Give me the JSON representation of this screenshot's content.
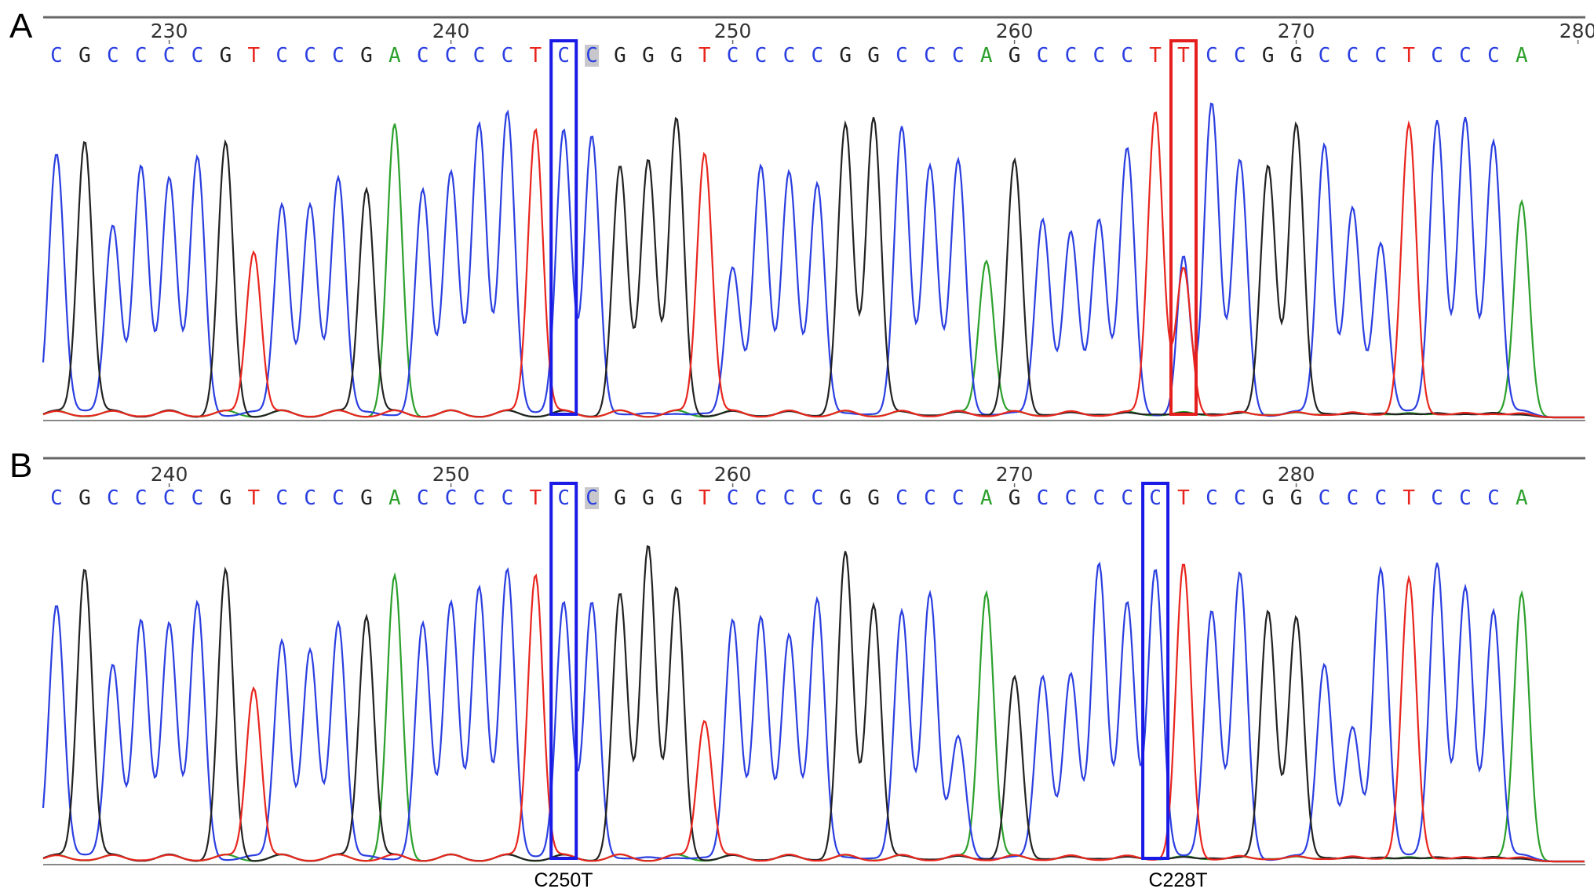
{
  "colors": {
    "A": "#2ca02c",
    "C": "#2b3fe0",
    "G": "#222222",
    "T": "#e8261e",
    "highlight_normal": "#1a1ae6",
    "highlight_mutant": "#e51e1e",
    "axis": "#666666"
  },
  "panels": [
    {
      "letter": "A",
      "sequence": "CGCCCCGTCCCGACCCCTCCGGGTCCCCGGCCCAGCCCCTTCCGGCCCTCCCA",
      "start_position": 226,
      "position_labels": [
        "230",
        "240",
        "250",
        "260",
        "270",
        "280"
      ],
      "highlights": [
        {
          "index": 18,
          "color": "blue"
        },
        {
          "index": 40,
          "color": "red"
        }
      ],
      "shaded_index": 19,
      "heights": [
        0.88,
        0.92,
        0.64,
        0.84,
        0.8,
        0.87,
        0.92,
        0.55,
        0.71,
        0.71,
        0.8,
        0.76,
        0.98,
        0.76,
        0.82,
        0.98,
        1.02,
        0.96,
        0.96,
        0.94,
        0.84,
        0.86,
        1.0,
        0.88,
        0.5,
        0.84,
        0.82,
        0.78,
        0.98,
        1.0,
        0.97,
        0.84,
        0.86,
        0.52,
        0.86,
        0.66,
        0.62,
        0.66,
        0.9,
        1.02,
        0.5,
        1.05,
        0.86,
        0.84,
        0.98,
        0.91,
        0.7,
        0.58,
        0.98,
        0.99,
        1.0,
        0.92,
        0.72
      ],
      "secondary_peak_index": 40,
      "secondary_peak_height": 0.52
    },
    {
      "letter": "B",
      "sequence": "CGCCCCGTCCCGACCCCTCCGGGTCCCCGGCCCAGCCCCCTCCGGCCCTCCCA",
      "start_position": 236,
      "position_labels": [
        "240",
        "250",
        "260",
        "270",
        "280"
      ],
      "highlights": [
        {
          "index": 18,
          "color": "blue"
        },
        {
          "index": 39,
          "color": "blue"
        }
      ],
      "shaded_index": 19,
      "heights": [
        0.86,
        0.98,
        0.66,
        0.81,
        0.8,
        0.87,
        0.98,
        0.58,
        0.74,
        0.71,
        0.8,
        0.82,
        0.96,
        0.8,
        0.87,
        0.92,
        0.98,
        0.96,
        0.87,
        0.87,
        0.9,
        1.06,
        0.92,
        0.47,
        0.81,
        0.82,
        0.76,
        0.88,
        1.04,
        0.86,
        0.84,
        0.9,
        0.42,
        0.9,
        0.62,
        0.62,
        0.63,
        1.0,
        0.87,
        0.98,
        1.0,
        0.84,
        0.97,
        0.84,
        0.82,
        0.66,
        0.45,
        0.98,
        0.95,
        1.0,
        0.92,
        0.84,
        0.9
      ],
      "secondary_peak_index": -1,
      "secondary_peak_height": 0
    }
  ],
  "mutation_labels": [
    "C250T",
    "C228T"
  ]
}
